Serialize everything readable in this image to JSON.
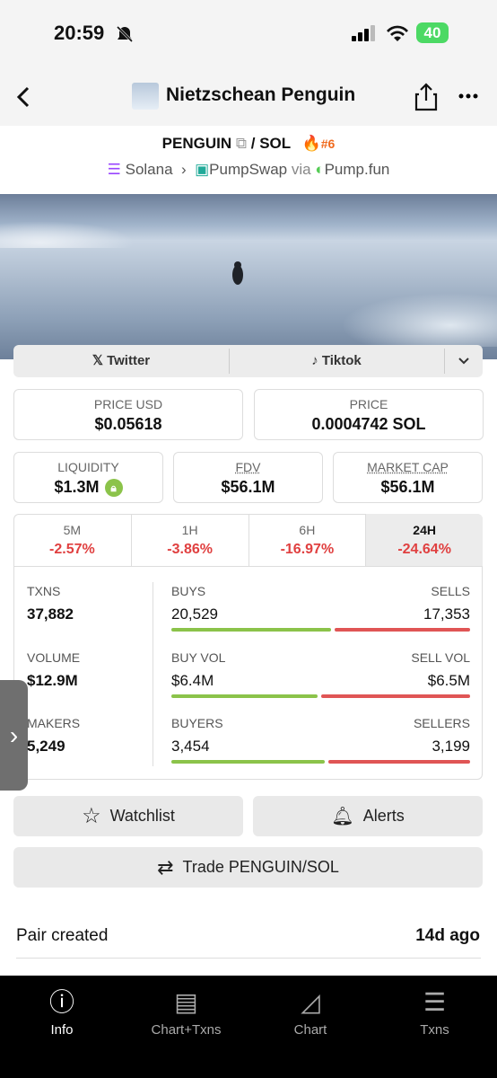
{
  "status_bar": {
    "time": "20:59",
    "battery": "40"
  },
  "header": {
    "title": "Nietzschean Penguin"
  },
  "pair": {
    "base": "PENGUIN",
    "separator": "/",
    "quote": "SOL",
    "rank": "#6"
  },
  "route": {
    "chain": "Solana",
    "dex": "PumpSwap",
    "via": "via",
    "launchpad": "Pump.fun"
  },
  "links": [
    "Twitter",
    "Tiktok"
  ],
  "prices": [
    {
      "label": "PRICE USD",
      "value": "$0.05618"
    },
    {
      "label": "PRICE",
      "value": "0.0004742 SOL"
    }
  ],
  "metrics": [
    {
      "label": "LIQUIDITY",
      "value": "$1.3M"
    },
    {
      "label": "FDV",
      "value": "$56.1M"
    },
    {
      "label": "MARKET CAP",
      "value": "$56.1M"
    }
  ],
  "periods": [
    {
      "label": "5M",
      "change": "-2.57%"
    },
    {
      "label": "1H",
      "change": "-3.86%"
    },
    {
      "label": "6H",
      "change": "-16.97%"
    },
    {
      "label": "24H",
      "change": "-24.64%"
    }
  ],
  "stats": [
    {
      "label": "TXNS",
      "value": "37,882",
      "left_label": "BUYS",
      "left": "20,529",
      "right_label": "SELLS",
      "right": "17,353"
    },
    {
      "label": "VOLUME",
      "value": "$12.9M",
      "left_label": "BUY VOL",
      "left": "$6.4M",
      "right_label": "SELL VOL",
      "right": "$6.5M"
    },
    {
      "label": "MAKERS",
      "value": "5,249",
      "left_label": "BUYERS",
      "left": "3,454",
      "right_label": "SELLERS",
      "right": "3,199"
    }
  ],
  "actions": [
    "Watchlist",
    "Alerts"
  ],
  "trade": "Trade PENGUIN/SOL",
  "details": [
    {
      "label": "Pair created",
      "value": "14d ago"
    }
  ],
  "tabs": [
    "Info",
    "Chart+Txns",
    "Chart",
    "Txns"
  ]
}
